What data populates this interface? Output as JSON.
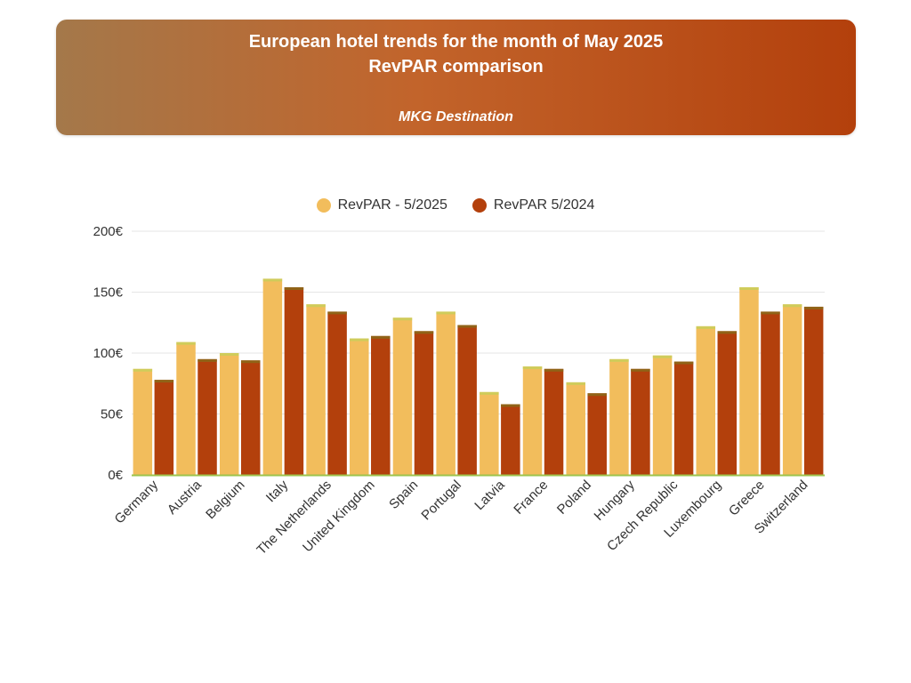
{
  "header": {
    "title": "European hotel trends for the month of May 2025",
    "subtitle": "RevPAR comparison",
    "source": "MKG Destination"
  },
  "colors": {
    "series_2025": "#f2bd5c",
    "series_2024": "#b3400c",
    "grid": "#e6e6e6",
    "baseline": "#9dc44d"
  },
  "chart_data": {
    "type": "bar",
    "title": "European hotel trends for the month of May 2025",
    "subtitle": "RevPAR comparison",
    "xlabel": "",
    "ylabel": "",
    "categories": [
      "Germany",
      "Austria",
      "Belgium",
      "Italy",
      "The Netherlands",
      "United Kingdom",
      "Spain",
      "Portugal",
      "Latvia",
      "France",
      "Poland",
      "Hungary",
      "Czech Republic",
      "Luxembourg",
      "Greece",
      "Switzerland"
    ],
    "series": [
      {
        "name": "RevPAR - 5/2025",
        "values": [
          87,
          109,
          100,
          161,
          140,
          112,
          129,
          134,
          68,
          89,
          76,
          95,
          98,
          122,
          154,
          140
        ]
      },
      {
        "name": "RevPAR 5/2024",
        "values": [
          78,
          95,
          94,
          154,
          134,
          114,
          118,
          123,
          58,
          87,
          67,
          87,
          93,
          118,
          134,
          138
        ]
      }
    ],
    "ylim": [
      0,
      200
    ],
    "yticks": [
      0,
      50,
      100,
      150,
      200
    ],
    "ytick_labels": [
      "0€",
      "50€",
      "100€",
      "150€",
      "200€"
    ],
    "grid": true,
    "legend_position": "top-center"
  }
}
